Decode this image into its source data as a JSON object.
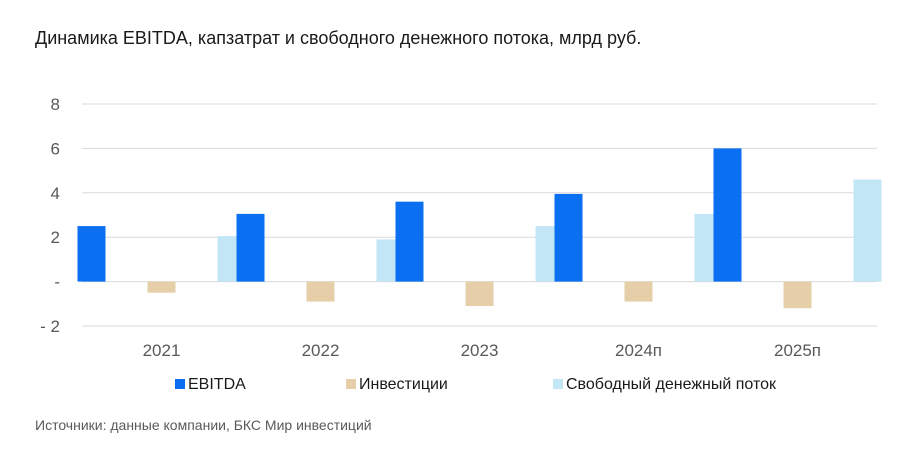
{
  "title": "Динамика EBITDA, капзатрат и свободного денежного потока, млрд руб.",
  "source": "Источники: данные компании, БКС Мир инвестиций",
  "chart_data": {
    "type": "bar",
    "categories": [
      "2021",
      "2022",
      "2023",
      "2024п",
      "2025п"
    ],
    "series": [
      {
        "name": "EBITDA",
        "color": "#0a6ff0",
        "values": [
          2.5,
          3.05,
          3.6,
          3.95,
          6.0
        ]
      },
      {
        "name": "Инвестиции",
        "color": "#e6cfa8",
        "values": [
          -0.5,
          -0.9,
          -1.1,
          -0.9,
          -1.2
        ]
      },
      {
        "name": "Свободный денежный поток",
        "color": "#c2e6f5",
        "values": [
          2.05,
          1.9,
          2.5,
          3.05,
          4.6
        ]
      }
    ],
    "ylim": [
      -2,
      8
    ],
    "yticks": [
      {
        "value": 8,
        "label": "8"
      },
      {
        "value": 6,
        "label": "6"
      },
      {
        "value": 4,
        "label": "4"
      },
      {
        "value": 2,
        "label": "2"
      },
      {
        "value": 0,
        "label": "-"
      },
      {
        "value": -2,
        "label": "- 2"
      }
    ],
    "grid": true,
    "legend_position": "bottom"
  }
}
